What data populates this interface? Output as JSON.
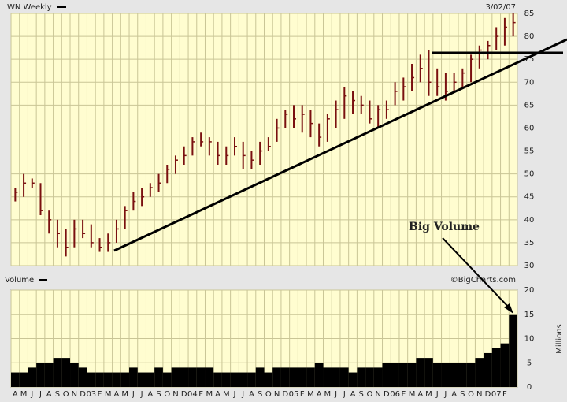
{
  "chart_data": [
    {
      "type": "ohlc",
      "title": "IWN Weekly",
      "date": "3/02/07",
      "color": "#7a1010",
      "categories": [
        "A",
        "M",
        "J",
        "J",
        "A",
        "S",
        "O",
        "N",
        "D",
        "03",
        "F",
        "M",
        "A",
        "M",
        "J",
        "J",
        "A",
        "S",
        "O",
        "N",
        "D",
        "04",
        "F",
        "M",
        "A",
        "M",
        "J",
        "J",
        "A",
        "S",
        "O",
        "N",
        "D",
        "05",
        "F",
        "M",
        "A",
        "M",
        "J",
        "J",
        "A",
        "S",
        "O",
        "N",
        "D",
        "06",
        "F",
        "M",
        "A",
        "M",
        "J",
        "J",
        "A",
        "S",
        "O",
        "N",
        "D",
        "07",
        "F",
        null
      ],
      "high": [
        47,
        50,
        49,
        48,
        42,
        40,
        38,
        40,
        40,
        39,
        36,
        37,
        40,
        43,
        46,
        47,
        48,
        50,
        52,
        54,
        56,
        58,
        59,
        58,
        57,
        56,
        58,
        57,
        55,
        57,
        58,
        62,
        64,
        65,
        65,
        64,
        61,
        63,
        66,
        69,
        68,
        67,
        66,
        65,
        66,
        70,
        71,
        74,
        76,
        77,
        73,
        72,
        72,
        73,
        76,
        78,
        79,
        82,
        84,
        85
      ],
      "low": [
        44,
        45,
        47,
        41,
        37,
        34,
        32,
        34,
        36,
        34,
        33,
        33,
        35,
        38,
        42,
        43,
        45,
        46,
        48,
        50,
        52,
        54,
        56,
        54,
        52,
        52,
        54,
        51,
        51,
        52,
        55,
        57,
        60,
        60,
        59,
        58,
        56,
        57,
        60,
        62,
        63,
        63,
        61,
        60,
        62,
        65,
        66,
        68,
        70,
        67,
        67,
        66,
        68,
        69,
        70,
        73,
        75,
        77,
        78,
        80
      ],
      "close": [
        46,
        48,
        48,
        42,
        40,
        37,
        34,
        38,
        37,
        35,
        34,
        35,
        38,
        42,
        44,
        45,
        47,
        48,
        51,
        53,
        54,
        57,
        57,
        57,
        54,
        54,
        56,
        54,
        53,
        55,
        56,
        60,
        63,
        62,
        63,
        61,
        58,
        62,
        64,
        67,
        66,
        65,
        62,
        64,
        64,
        68,
        69,
        71,
        73,
        70,
        69,
        68,
        70,
        72,
        75,
        77,
        78,
        80,
        82,
        83
      ],
      "ylim": [
        30,
        85
      ],
      "yticks": [
        30,
        35,
        40,
        45,
        50,
        55,
        60,
        65,
        70,
        75,
        80,
        85
      ],
      "grid": true,
      "annotation": "Big Volume"
    },
    {
      "type": "bar",
      "title": "Volume",
      "source": "©BigCharts.com",
      "ylabel": "Millions",
      "color": "#000000",
      "values": [
        3,
        3,
        4,
        5,
        5,
        6,
        6,
        5,
        4,
        3,
        3,
        3,
        3,
        3,
        4,
        3,
        3,
        4,
        3,
        4,
        4,
        4,
        4,
        4,
        3,
        3,
        3,
        3,
        3,
        4,
        3,
        4,
        4,
        4,
        4,
        4,
        5,
        4,
        4,
        4,
        3,
        4,
        4,
        4,
        5,
        5,
        5,
        5,
        6,
        6,
        5,
        5,
        5,
        5,
        5,
        6,
        7,
        8,
        9,
        15
      ],
      "ylim": [
        0,
        20
      ],
      "yticks": [
        0,
        5,
        10,
        15,
        20
      ],
      "grid": true
    }
  ]
}
